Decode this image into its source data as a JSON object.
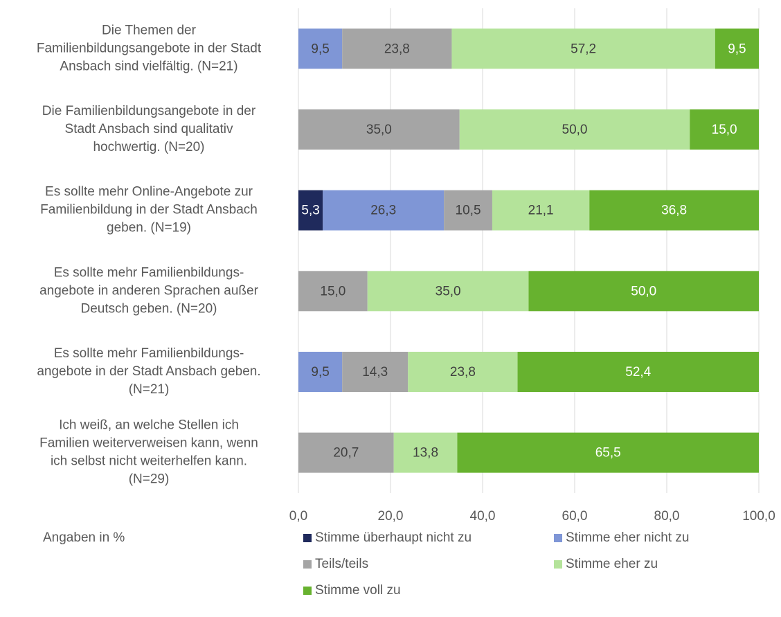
{
  "chart_data": {
    "type": "stacked_barh",
    "categories": [
      "Die Themen der\nFamilienbildungsangebote in der Stadt\nAnsbach sind vielfältig. (N=21)",
      "Die Familienbildungsangebote in der\nStadt Ansbach sind qualitativ\nhochwertig. (N=20)",
      "Es sollte mehr Online-Angebote zur\nFamilienbildung in der Stadt Ansbach\ngeben. (N=19)",
      "Es sollte mehr Familienbildungs-\nangebote in anderen Sprachen außer\nDeutsch geben. (N=20)",
      "Es sollte mehr Familienbildungs-\nangebote in der Stadt Ansbach geben.\n(N=21)",
      "Ich weiß, an welche Stellen ich\nFamilien weiterverweisen kann, wenn\nich selbst nicht weiterhelfen kann.\n(N=29)"
    ],
    "series": [
      {
        "name": "Stimme überhaupt nicht zu",
        "color": "#1f2a5c",
        "values": [
          null,
          null,
          5.3,
          null,
          null,
          null
        ],
        "value_labels": [
          null,
          null,
          "5,3",
          null,
          null,
          null
        ]
      },
      {
        "name": "Stimme eher nicht zu",
        "color": "#7f96d6",
        "values": [
          9.5,
          null,
          26.3,
          null,
          9.5,
          null
        ],
        "value_labels": [
          "9,5",
          null,
          "26,3",
          null,
          "9,5",
          null
        ]
      },
      {
        "name": "Teils/teils",
        "color": "#a5a5a5",
        "values": [
          23.8,
          35.0,
          10.5,
          15.0,
          14.3,
          20.7
        ],
        "value_labels": [
          "23,8",
          "35,0",
          "10,5",
          "15,0",
          "14,3",
          "20,7"
        ]
      },
      {
        "name": "Stimme eher zu",
        "color": "#b4e39a",
        "values": [
          57.2,
          50.0,
          21.1,
          35.0,
          23.8,
          13.8
        ],
        "value_labels": [
          "57,2",
          "50,0",
          "21,1",
          "35,0",
          "23,8",
          "13,8"
        ]
      },
      {
        "name": "Stimme voll zu",
        "color": "#67b22f",
        "values": [
          9.5,
          15.0,
          36.8,
          50.0,
          52.4,
          65.5
        ],
        "value_labels": [
          "9,5",
          "15,0",
          "36,8",
          "50,0",
          "52,4",
          "65,5"
        ]
      }
    ],
    "xlim": [
      0,
      100
    ],
    "xticks": [
      {
        "value": 0,
        "label": "0,0"
      },
      {
        "value": 20,
        "label": "20,0"
      },
      {
        "value": 40,
        "label": "40,0"
      },
      {
        "value": 60,
        "label": "60,0"
      },
      {
        "value": 80,
        "label": "80,0"
      },
      {
        "value": 100,
        "label": "100,0"
      }
    ],
    "grid": true,
    "annotation": "Angaben in %"
  }
}
